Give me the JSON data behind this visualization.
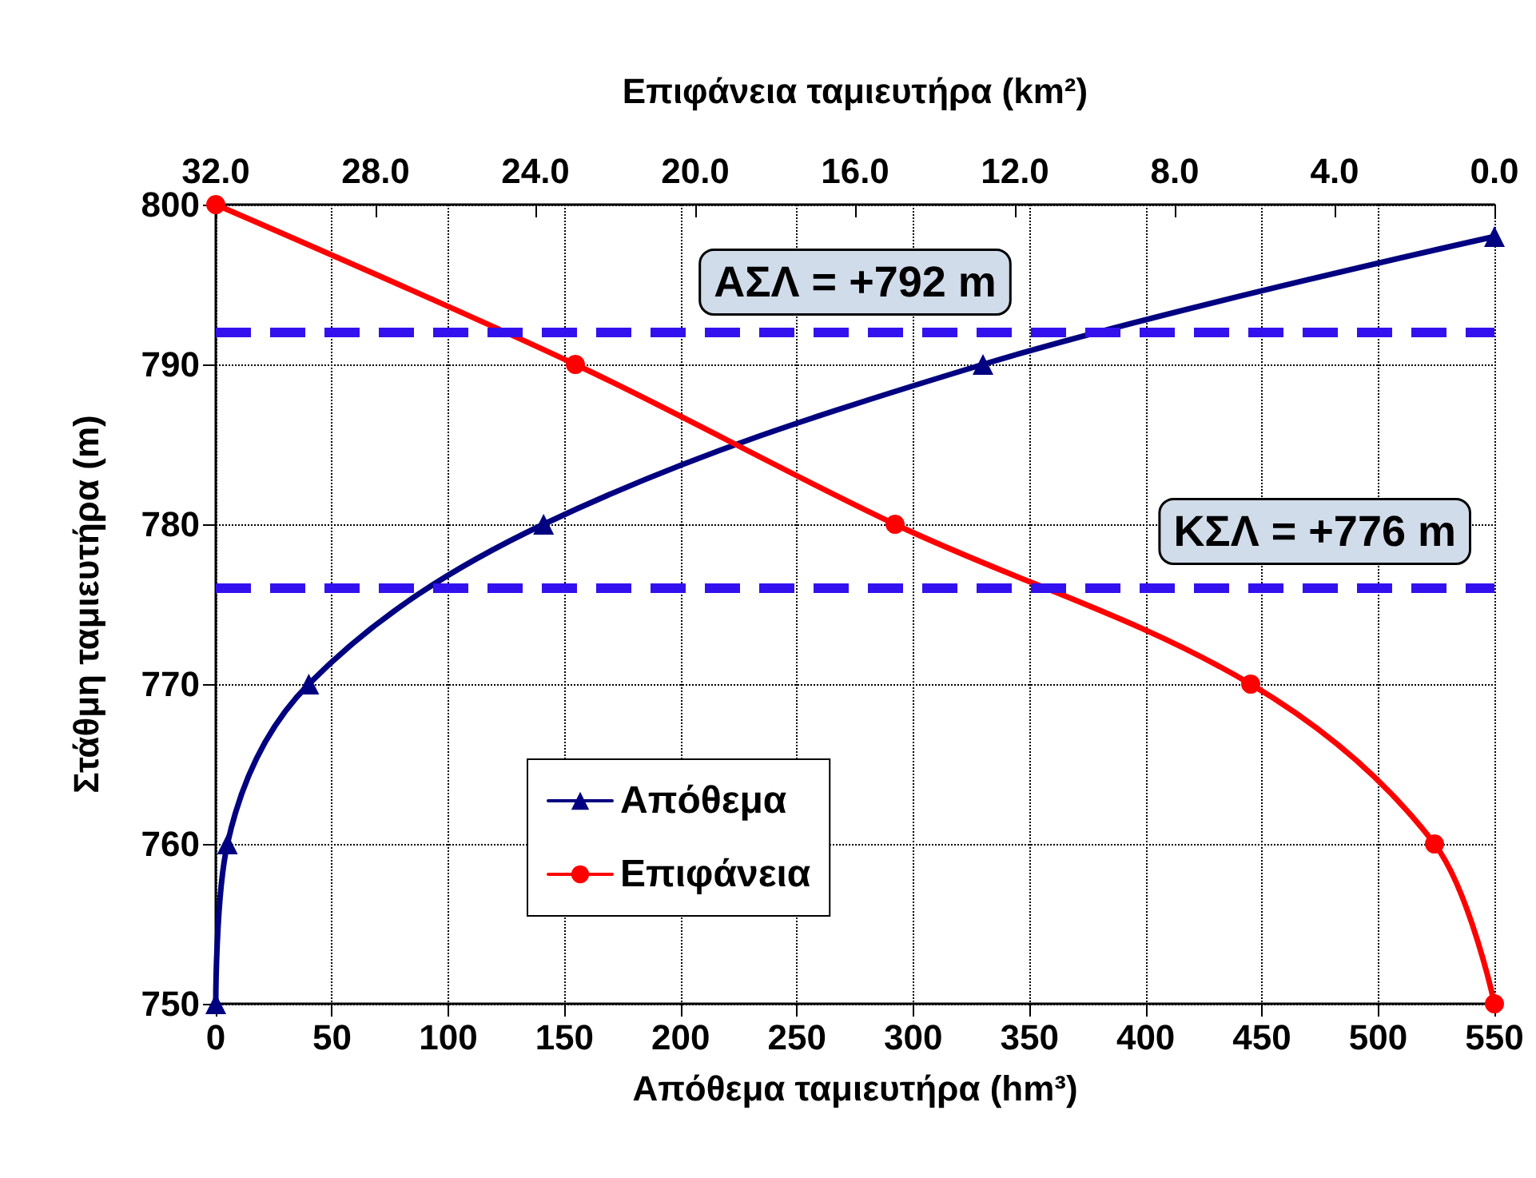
{
  "chart_data": {
    "type": "line",
    "xlabel": "Απόθεμα ταμιευτήρα (hm³)",
    "ylabel": "Στάθμη ταμιευτήρα (m)",
    "x2label": "Επιφάνεια ταμιευτήρα (km²)",
    "xlim": [
      0,
      550
    ],
    "xticks": [
      0,
      50,
      100,
      150,
      200,
      250,
      300,
      350,
      400,
      450,
      500,
      550
    ],
    "x2lim": [
      32,
      0
    ],
    "x2ticks": [
      {
        "value": 32,
        "label": "32.0"
      },
      {
        "value": 28,
        "label": "28.0"
      },
      {
        "value": 24,
        "label": "24.0"
      },
      {
        "value": 20,
        "label": "20.0"
      },
      {
        "value": 16,
        "label": "16.0"
      },
      {
        "value": 12,
        "label": "12.0"
      },
      {
        "value": 8,
        "label": "8.0"
      },
      {
        "value": 4,
        "label": "4.0"
      },
      {
        "value": 0,
        "label": "0.0"
      }
    ],
    "ylim": [
      750,
      800
    ],
    "yticks": [
      750,
      760,
      770,
      780,
      790,
      800
    ],
    "series": [
      {
        "name": "Απόθεμα",
        "color": "#000080",
        "marker": "triangle",
        "x": [
          0,
          5,
          40,
          141,
          330,
          550
        ],
        "values": [
          750,
          760,
          770,
          780,
          790,
          798
        ]
      },
      {
        "name": "Επιφάνεια",
        "color": "#ff0000",
        "marker": "circle",
        "axis": "x2",
        "x": [
          32,
          23,
          15,
          6.1,
          1.5,
          0
        ],
        "values": [
          800,
          790,
          780,
          770,
          760,
          750
        ]
      }
    ],
    "ref_lines": [
      {
        "axis": "y",
        "value": 792,
        "label": "ΑΣΛ = +792 m",
        "color": "#3311ee",
        "line_style": "dashed"
      },
      {
        "axis": "y",
        "value": 776,
        "label": "ΚΣΛ = +776 m",
        "color": "#3311ee",
        "line_style": "dashed"
      }
    ],
    "grid": true,
    "legend": "bottom left",
    "line_style": "solid"
  }
}
